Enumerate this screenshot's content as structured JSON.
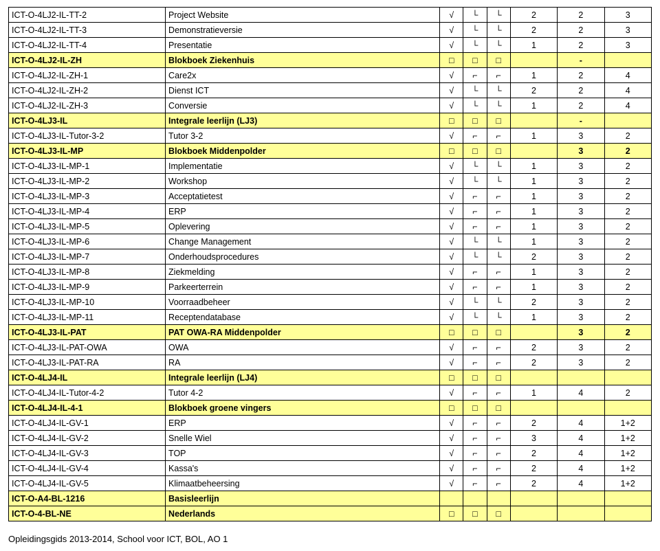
{
  "colors": {
    "yellow": "#ffff99",
    "white": "#ffffff"
  },
  "marks": {
    "check": "√",
    "up1": "⌐",
    "up2": "⌐",
    "down1": "└",
    "down2": "└",
    "box": "□"
  },
  "footer": "Opleidingsgids 2013-2014, School voor ICT, BOL, AO 1",
  "rows": [
    {
      "bold": false,
      "bg": "white",
      "code": "ICT-O-4LJ2-IL-TT-2",
      "desc": "Project Website",
      "m": [
        "check",
        "down1",
        "down2"
      ],
      "n": [
        "2",
        "2",
        "3"
      ]
    },
    {
      "bold": false,
      "bg": "white",
      "code": "ICT-O-4LJ2-IL-TT-3",
      "desc": "Demonstratieversie",
      "m": [
        "check",
        "down1",
        "down2"
      ],
      "n": [
        "2",
        "2",
        "3"
      ]
    },
    {
      "bold": false,
      "bg": "white",
      "code": "ICT-O-4LJ2-IL-TT-4",
      "desc": "Presentatie",
      "m": [
        "check",
        "down1",
        "down2"
      ],
      "n": [
        "1",
        "2",
        "3"
      ]
    },
    {
      "bold": true,
      "bg": "yellow",
      "code": "ICT-O-4LJ2-IL-ZH",
      "desc": "Blokboek Ziekenhuis",
      "m": [
        "box",
        "box",
        "box"
      ],
      "n": [
        "",
        "-",
        ""
      ]
    },
    {
      "bold": false,
      "bg": "white",
      "code": "ICT-O-4LJ2-IL-ZH-1",
      "desc": "Care2x",
      "m": [
        "check",
        "up1",
        "up2"
      ],
      "n": [
        "1",
        "2",
        "4"
      ]
    },
    {
      "bold": false,
      "bg": "white",
      "code": "ICT-O-4LJ2-IL-ZH-2",
      "desc": "Dienst ICT",
      "m": [
        "check",
        "down1",
        "down2"
      ],
      "n": [
        "2",
        "2",
        "4"
      ]
    },
    {
      "bold": false,
      "bg": "white",
      "code": "ICT-O-4LJ2-IL-ZH-3",
      "desc": "Conversie",
      "m": [
        "check",
        "down1",
        "down2"
      ],
      "n": [
        "1",
        "2",
        "4"
      ]
    },
    {
      "bold": true,
      "bg": "yellow",
      "code": "ICT-O-4LJ3-IL",
      "desc": "Integrale leerlijn (LJ3)",
      "m": [
        "box",
        "box",
        "box"
      ],
      "n": [
        "",
        "-",
        ""
      ]
    },
    {
      "bold": false,
      "bg": "white",
      "code": "ICT-O-4LJ3-IL-Tutor-3-2",
      "desc": "Tutor 3-2",
      "m": [
        "check",
        "up1",
        "up2"
      ],
      "n": [
        "1",
        "3",
        "2"
      ]
    },
    {
      "bold": true,
      "bg": "yellow",
      "code": "ICT-O-4LJ3-IL-MP",
      "desc": "Blokboek Middenpolder",
      "m": [
        "box",
        "box",
        "box"
      ],
      "n": [
        "",
        "3",
        "2"
      ]
    },
    {
      "bold": false,
      "bg": "white",
      "code": "ICT-O-4LJ3-IL-MP-1",
      "desc": "Implementatie",
      "m": [
        "check",
        "down1",
        "down2"
      ],
      "n": [
        "1",
        "3",
        "2"
      ]
    },
    {
      "bold": false,
      "bg": "white",
      "code": "ICT-O-4LJ3-IL-MP-2",
      "desc": "Workshop",
      "m": [
        "check",
        "down1",
        "down2"
      ],
      "n": [
        "1",
        "3",
        "2"
      ]
    },
    {
      "bold": false,
      "bg": "white",
      "code": "ICT-O-4LJ3-IL-MP-3",
      "desc": "Acceptatietest",
      "m": [
        "check",
        "up1",
        "up2"
      ],
      "n": [
        "1",
        "3",
        "2"
      ]
    },
    {
      "bold": false,
      "bg": "white",
      "code": "ICT-O-4LJ3-IL-MP-4",
      "desc": "ERP",
      "m": [
        "check",
        "up1",
        "up2"
      ],
      "n": [
        "1",
        "3",
        "2"
      ]
    },
    {
      "bold": false,
      "bg": "white",
      "code": "ICT-O-4LJ3-IL-MP-5",
      "desc": "Oplevering",
      "m": [
        "check",
        "up1",
        "up2"
      ],
      "n": [
        "1",
        "3",
        "2"
      ]
    },
    {
      "bold": false,
      "bg": "white",
      "code": "ICT-O-4LJ3-IL-MP-6",
      "desc": "Change Management",
      "m": [
        "check",
        "down1",
        "down2"
      ],
      "n": [
        "1",
        "3",
        "2"
      ]
    },
    {
      "bold": false,
      "bg": "white",
      "code": "ICT-O-4LJ3-IL-MP-7",
      "desc": "Onderhoudsprocedures",
      "m": [
        "check",
        "down1",
        "down2"
      ],
      "n": [
        "2",
        "3",
        "2"
      ]
    },
    {
      "bold": false,
      "bg": "white",
      "code": "ICT-O-4LJ3-IL-MP-8",
      "desc": "Ziekmelding",
      "m": [
        "check",
        "up1",
        "up2"
      ],
      "n": [
        "1",
        "3",
        "2"
      ]
    },
    {
      "bold": false,
      "bg": "white",
      "code": "ICT-O-4LJ3-IL-MP-9",
      "desc": "Parkeerterrein",
      "m": [
        "check",
        "up1",
        "up2"
      ],
      "n": [
        "1",
        "3",
        "2"
      ]
    },
    {
      "bold": false,
      "bg": "white",
      "code": "ICT-O-4LJ3-IL-MP-10",
      "desc": "Voorraadbeheer",
      "m": [
        "check",
        "down1",
        "down2"
      ],
      "n": [
        "2",
        "3",
        "2"
      ]
    },
    {
      "bold": false,
      "bg": "white",
      "code": "ICT-O-4LJ3-IL-MP-11",
      "desc": "Receptendatabase",
      "m": [
        "check",
        "down1",
        "down2"
      ],
      "n": [
        "1",
        "3",
        "2"
      ]
    },
    {
      "bold": true,
      "bg": "yellow",
      "code": "ICT-O-4LJ3-IL-PAT",
      "desc": "PAT OWA-RA Middenpolder",
      "m": [
        "box",
        "box",
        "box"
      ],
      "n": [
        "",
        "3",
        "2"
      ]
    },
    {
      "bold": false,
      "bg": "white",
      "code": "ICT-O-4LJ3-IL-PAT-OWA",
      "desc": "OWA",
      "m": [
        "check",
        "up1",
        "up2"
      ],
      "n": [
        "2",
        "3",
        "2"
      ]
    },
    {
      "bold": false,
      "bg": "white",
      "code": "ICT-O-4LJ3-IL-PAT-RA",
      "desc": "RA",
      "m": [
        "check",
        "up1",
        "up2"
      ],
      "n": [
        "2",
        "3",
        "2"
      ]
    },
    {
      "bold": true,
      "bg": "yellow",
      "code": "ICT-O-4LJ4-IL",
      "desc": "Integrale leerlijn (LJ4)",
      "m": [
        "box",
        "box",
        "box"
      ],
      "n": [
        "",
        "",
        ""
      ]
    },
    {
      "bold": false,
      "bg": "white",
      "code": "ICT-O-4LJ4-IL-Tutor-4-2",
      "desc": "Tutor 4-2",
      "m": [
        "check",
        "up1",
        "up2"
      ],
      "n": [
        "1",
        "4",
        "2"
      ]
    },
    {
      "bold": true,
      "bg": "yellow",
      "code": "ICT-O-4LJ4-IL-4-1",
      "desc": "Blokboek groene vingers",
      "m": [
        "box",
        "box",
        "box"
      ],
      "n": [
        "",
        "",
        ""
      ]
    },
    {
      "bold": false,
      "bg": "white",
      "code": "ICT-O-4LJ4-IL-GV-1",
      "desc": "ERP",
      "m": [
        "check",
        "up1",
        "up2"
      ],
      "n": [
        "2",
        "4",
        "1+2"
      ]
    },
    {
      "bold": false,
      "bg": "white",
      "code": "ICT-O-4LJ4-IL-GV-2",
      "desc": "Snelle Wiel",
      "m": [
        "check",
        "up1",
        "up2"
      ],
      "n": [
        "3",
        "4",
        "1+2"
      ]
    },
    {
      "bold": false,
      "bg": "white",
      "code": "ICT-O-4LJ4-IL-GV-3",
      "desc": "TOP",
      "m": [
        "check",
        "up1",
        "up2"
      ],
      "n": [
        "2",
        "4",
        "1+2"
      ]
    },
    {
      "bold": false,
      "bg": "white",
      "code": "ICT-O-4LJ4-IL-GV-4",
      "desc": "Kassa's",
      "m": [
        "check",
        "up1",
        "up2"
      ],
      "n": [
        "2",
        "4",
        "1+2"
      ]
    },
    {
      "bold": false,
      "bg": "white",
      "code": "ICT-O-4LJ4-IL-GV-5",
      "desc": "Klimaatbeheersing",
      "m": [
        "check",
        "up1",
        "up2"
      ],
      "n": [
        "2",
        "4",
        "1+2"
      ]
    },
    {
      "bold": true,
      "bg": "yellow",
      "code": "ICT-O-A4-BL-1216",
      "desc": "Basisleerlijn",
      "m": [
        "",
        "",
        ""
      ],
      "n": [
        "",
        "",
        ""
      ]
    },
    {
      "bold": true,
      "bg": "yellow",
      "code": "ICT-O-4-BL-NE",
      "desc": "Nederlands",
      "m": [
        "box",
        "box",
        "box"
      ],
      "n": [
        "",
        "",
        ""
      ]
    }
  ]
}
